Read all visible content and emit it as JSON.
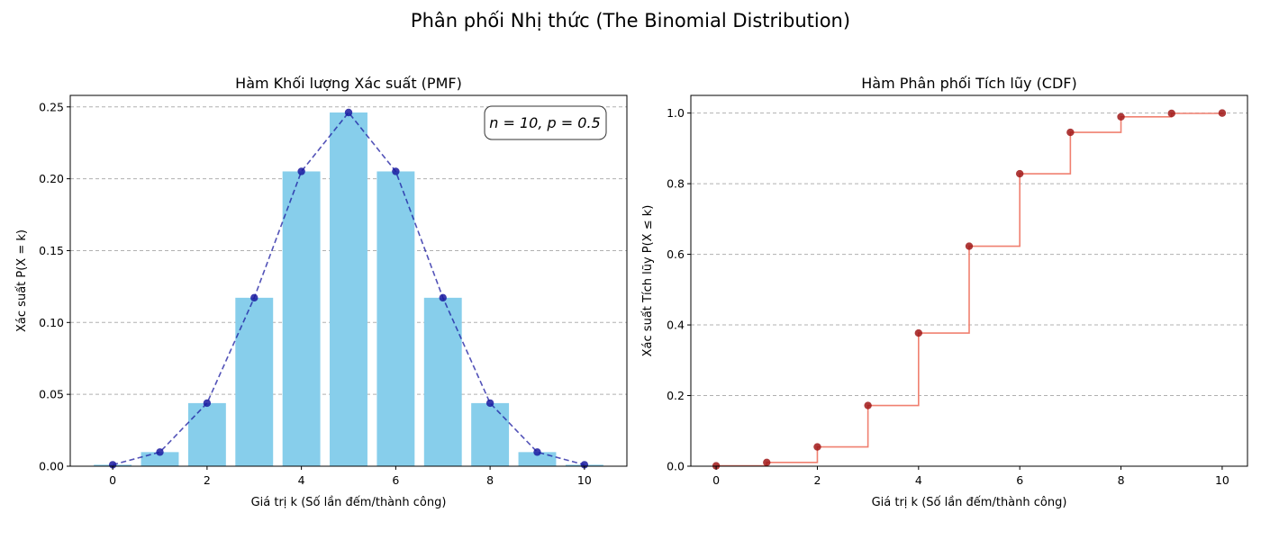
{
  "suptitle": "Phân phối Nhị thức (The Binomial Distribution)",
  "colors": {
    "bar": "#87ceeb",
    "pmf_line": "#1a1aa0",
    "cdf_line": "#f08070",
    "cdf_marker": "#a01818",
    "grid": "#b0b0b0"
  },
  "chart_data": [
    {
      "type": "bar",
      "title": "Hàm Khối lượng Xác suất (PMF)",
      "xlabel": "Giá trị k (Số lần đếm/thành công)",
      "ylabel": "Xác suất P(X = k)",
      "annotation": "n = 10, p = 0.5",
      "xlim": [
        -0.9,
        10.9
      ],
      "ylim": [
        0,
        0.258
      ],
      "x": [
        0,
        1,
        2,
        3,
        4,
        5,
        6,
        7,
        8,
        9,
        10
      ],
      "values": [
        0.001,
        0.0098,
        0.0439,
        0.1172,
        0.2051,
        0.2461,
        0.2051,
        0.1172,
        0.0439,
        0.0098,
        0.001
      ],
      "xticks": [
        0,
        2,
        4,
        6,
        8,
        10
      ],
      "xtick_labels": [
        "0",
        "2",
        "4",
        "6",
        "8",
        "10"
      ],
      "yticks": [
        0.0,
        0.05,
        0.1,
        0.15,
        0.2,
        0.25
      ],
      "ytick_labels": [
        "0.00",
        "0.05",
        "0.10",
        "0.15",
        "0.20",
        "0.25"
      ],
      "grid": "y-dashed",
      "overlay": "dashed line with markers"
    },
    {
      "type": "line",
      "step": "post",
      "title": "Hàm Phân phối Tích lũy (CDF)",
      "xlabel": "Giá trị k (Số lần đếm/thành công)",
      "ylabel": "Xác suất Tích lũy P(X ≤ k)",
      "xlim": [
        -0.5,
        10.5
      ],
      "ylim": [
        0,
        1.05
      ],
      "x": [
        0,
        1,
        2,
        3,
        4,
        5,
        6,
        7,
        8,
        9,
        10
      ],
      "values": [
        0.001,
        0.0107,
        0.0547,
        0.1719,
        0.377,
        0.623,
        0.8281,
        0.9453,
        0.9893,
        0.999,
        1.0
      ],
      "xticks": [
        0,
        2,
        4,
        6,
        8,
        10
      ],
      "xtick_labels": [
        "0",
        "2",
        "4",
        "6",
        "8",
        "10"
      ],
      "yticks": [
        0.0,
        0.2,
        0.4,
        0.6,
        0.8,
        1.0
      ],
      "ytick_labels": [
        "0.0",
        "0.2",
        "0.4",
        "0.6",
        "0.8",
        "1.0"
      ],
      "grid": "y-dashed"
    }
  ]
}
